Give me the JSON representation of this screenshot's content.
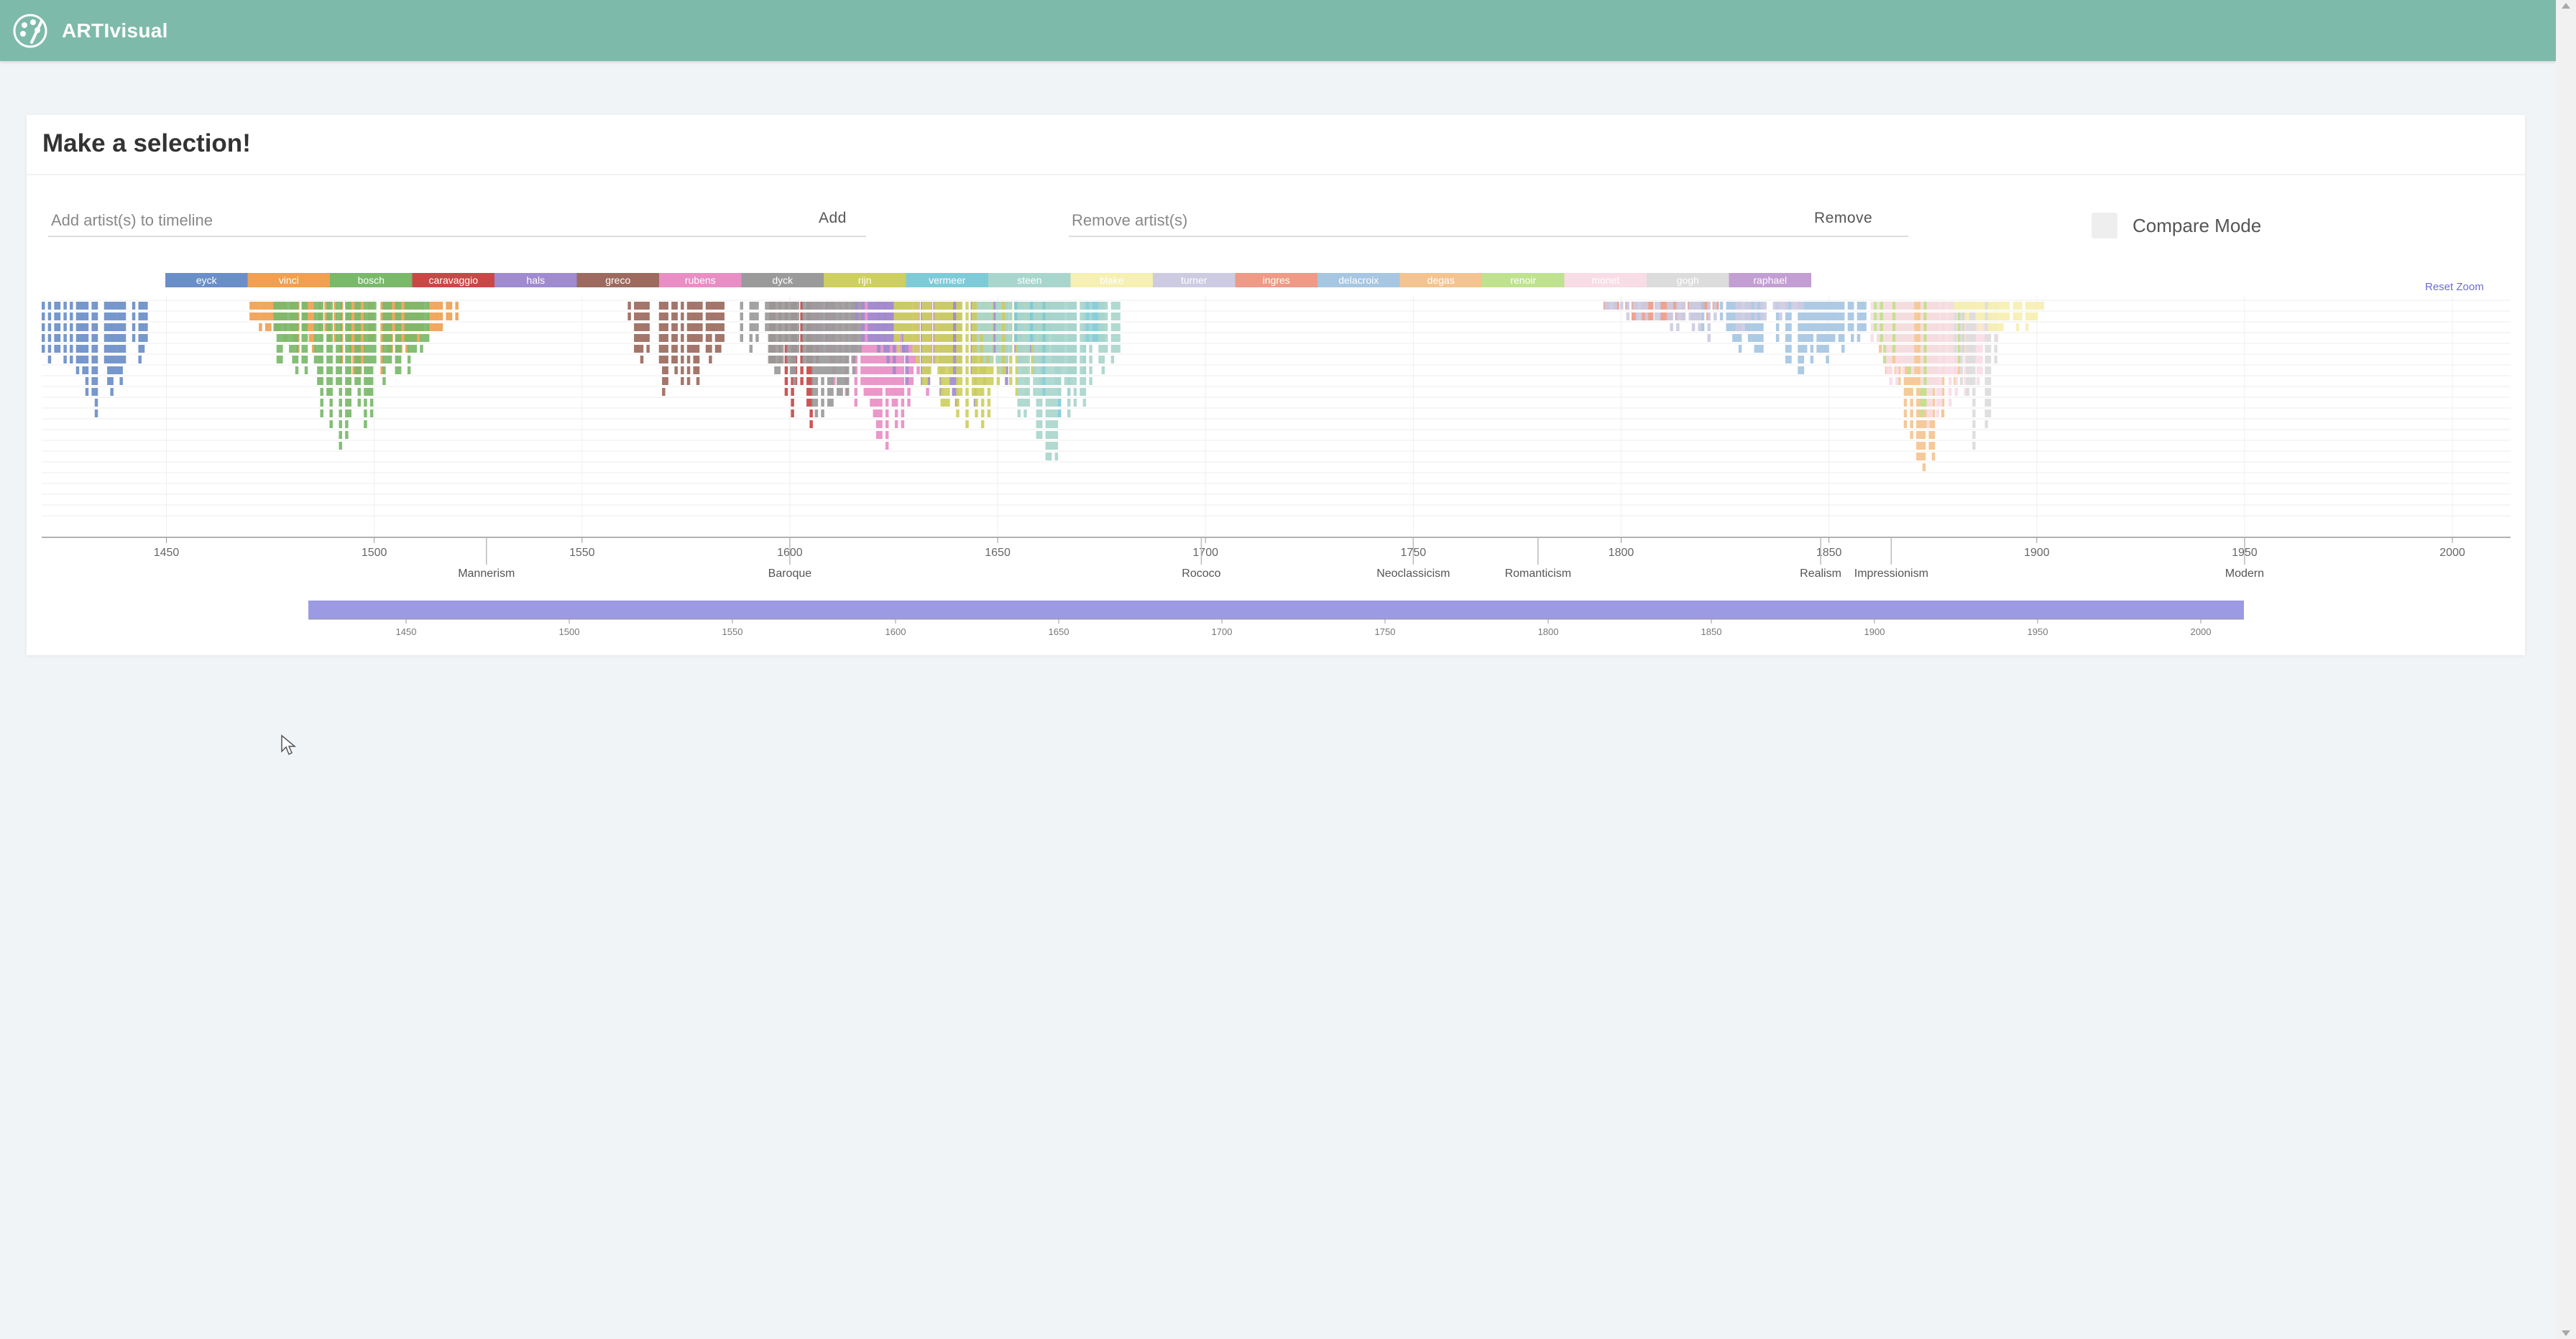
{
  "app": {
    "title": "ARTIvisual"
  },
  "card": {
    "title": "Make a selection!"
  },
  "add": {
    "placeholder": "Add artist(s) to timeline",
    "button": "Add"
  },
  "remove": {
    "placeholder": "Remove artist(s)",
    "button": "Remove"
  },
  "compare": {
    "label": "Compare Mode",
    "checked": false
  },
  "reset_zoom": "Reset Zoom",
  "chart_data": {
    "type": "timeline",
    "legend_placement": "top",
    "legend": [
      {
        "name": "eyck",
        "color": "#6a8ec8"
      },
      {
        "name": "vinci",
        "color": "#f0a050"
      },
      {
        "name": "bosch",
        "color": "#7ab86a"
      },
      {
        "name": "caravaggio",
        "color": "#c84848"
      },
      {
        "name": "hals",
        "color": "#a08ad0"
      },
      {
        "name": "greco",
        "color": "#9c6a5e"
      },
      {
        "name": "rubens",
        "color": "#e88ec4"
      },
      {
        "name": "dyck",
        "color": "#9a9a9a"
      },
      {
        "name": "rijn",
        "color": "#cdcf60"
      },
      {
        "name": "vermeer",
        "color": "#7ecbd8"
      },
      {
        "name": "steen",
        "color": "#a9d6cc"
      },
      {
        "name": "blake",
        "color": "#f6f0b2"
      },
      {
        "name": "turner",
        "color": "#cccbe2"
      },
      {
        "name": "ingres",
        "color": "#ee9a86"
      },
      {
        "name": "delacroix",
        "color": "#a6c6e2"
      },
      {
        "name": "degas",
        "color": "#f4c490"
      },
      {
        "name": "renoir",
        "color": "#bfe28e"
      },
      {
        "name": "monet",
        "color": "#f8dce6"
      },
      {
        "name": "gogh",
        "color": "#dcdcdc"
      },
      {
        "name": "raphael",
        "color": "#c29ed2"
      }
    ],
    "x_ticks": [
      1450,
      1500,
      1550,
      1600,
      1650,
      1700,
      1750,
      1800,
      1850,
      1900,
      1950,
      2000
    ],
    "xlim": [
      1420,
      2014
    ],
    "periods": [
      {
        "label": "Mannerism",
        "year": 1527
      },
      {
        "label": "Baroque",
        "year": 1600
      },
      {
        "label": "Rococo",
        "year": 1699
      },
      {
        "label": "Neoclassicism",
        "year": 1750
      },
      {
        "label": "Romanticism",
        "year": 1780
      },
      {
        "label": "Realism",
        "year": 1848
      },
      {
        "label": "Impressionism",
        "year": 1865
      },
      {
        "label": "Modern",
        "year": 1950
      }
    ],
    "groups": [
      {
        "artist": "eyck",
        "start": 1420,
        "end": 1445,
        "max_rows": 14
      },
      {
        "artist": "vinci",
        "start": 1470,
        "end": 1520,
        "max_rows": 8
      },
      {
        "artist": "bosch",
        "start": 1475,
        "end": 1513,
        "max_rows": 15
      },
      {
        "artist": "greco",
        "start": 1561,
        "end": 1584,
        "max_rows": 12
      },
      {
        "artist": "caravaggio",
        "start": 1595,
        "end": 1610,
        "max_rows": 16
      },
      {
        "artist": "rubens",
        "start": 1605,
        "end": 1640,
        "max_rows": 16
      },
      {
        "artist": "dyck",
        "start": 1588,
        "end": 1630,
        "max_rows": 12
      },
      {
        "artist": "hals",
        "start": 1615,
        "end": 1665,
        "max_rows": 12
      },
      {
        "artist": "rijn",
        "start": 1625,
        "end": 1665,
        "max_rows": 15
      },
      {
        "artist": "vermeer",
        "start": 1654,
        "end": 1675,
        "max_rows": 12
      },
      {
        "artist": "steen",
        "start": 1645,
        "end": 1679,
        "max_rows": 16
      },
      {
        "artist": "ingres",
        "start": 1795,
        "end": 1825,
        "max_rows": 3
      },
      {
        "artist": "delacroix",
        "start": 1817,
        "end": 1863,
        "max_rows": 8
      },
      {
        "artist": "turner",
        "start": 1796,
        "end": 1845,
        "max_rows": 4
      },
      {
        "artist": "degas",
        "start": 1862,
        "end": 1885,
        "max_rows": 18
      },
      {
        "artist": "renoir",
        "start": 1860,
        "end": 1885,
        "max_rows": 12
      },
      {
        "artist": "monet",
        "start": 1860,
        "end": 1890,
        "max_rows": 15
      },
      {
        "artist": "gogh",
        "start": 1880,
        "end": 1890,
        "max_rows": 18
      },
      {
        "artist": "blake",
        "start": 1880,
        "end": 1902,
        "max_rows": 4
      }
    ],
    "brush_ticks": [
      1450,
      1500,
      1550,
      1600,
      1650,
      1700,
      1750,
      1800,
      1850,
      1900,
      1950,
      2000
    ]
  }
}
